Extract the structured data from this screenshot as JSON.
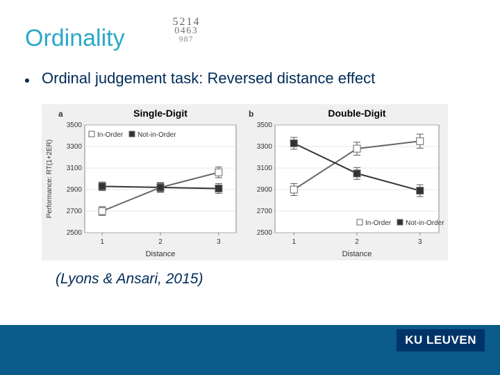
{
  "colors": {
    "heading": "#2aa8c8",
    "body_text": "#002b57",
    "footer_bar": "#0a5a8a",
    "logo_bg": "#003469",
    "chart_bg": "#f0f0f0",
    "plot_bg": "#ffffff",
    "grid": "#cfcfcf",
    "axis": "#888888",
    "series_in_order": "#ffffff",
    "series_not_in_order": "#333333",
    "series_stroke": "#666666",
    "error_bar": "#555555"
  },
  "heading": "Ordinality",
  "bullet_text": "Ordinal judgement task: Reversed distance effect",
  "citation": "(Lyons & Ansari, 2015)",
  "logo_text": "KU LEUVEN",
  "charts": {
    "y_axis_title": "Performance: RT(1+2ER)",
    "y_ticks": [
      2500,
      2700,
      2900,
      3100,
      3300,
      3500
    ],
    "ylim": [
      2500,
      3500
    ],
    "x_axis_title": "Distance",
    "x_ticks": [
      1,
      2,
      3
    ],
    "xlim": [
      0.7,
      3.3
    ],
    "line_width": 2,
    "marker_size": 5,
    "error_cap_width": 5,
    "legend": {
      "in_order_label": "In-Order",
      "not_in_order_label": "Not-in-Order"
    },
    "panels": [
      {
        "key": "a",
        "title": "Single-Digit",
        "legend_pos": "top-left",
        "series": [
          {
            "name": "in_order",
            "x": [
              1,
              2,
              3
            ],
            "y": [
              2700,
              2920,
              3060
            ],
            "err": [
              40,
              45,
              50
            ]
          },
          {
            "name": "not_in_order",
            "x": [
              1,
              2,
              3
            ],
            "y": [
              2930,
              2920,
              2910
            ],
            "err": [
              40,
              40,
              45
            ]
          }
        ]
      },
      {
        "key": "b",
        "title": "Double-Digit",
        "legend_pos": "bottom-right",
        "series": [
          {
            "name": "in_order",
            "x": [
              1,
              2,
              3
            ],
            "y": [
              2900,
              3280,
              3350
            ],
            "err": [
              55,
              60,
              65
            ]
          },
          {
            "name": "not_in_order",
            "x": [
              1,
              2,
              3
            ],
            "y": [
              3330,
              3050,
              2890
            ],
            "err": [
              55,
              55,
              55
            ]
          }
        ]
      }
    ]
  }
}
